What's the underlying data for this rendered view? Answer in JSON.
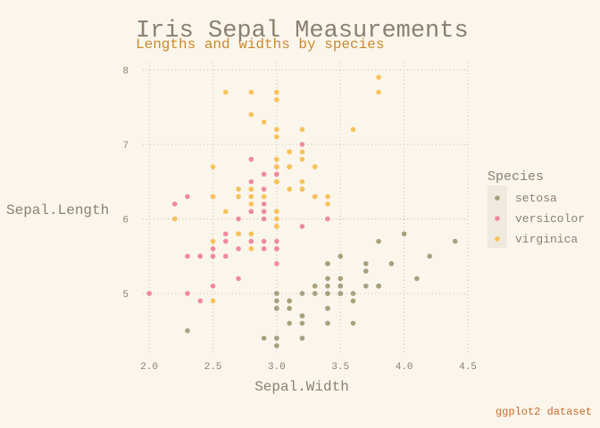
{
  "chart_data": {
    "type": "scatter",
    "title": "Iris Sepal Measurements",
    "subtitle": "Lengths and widths by species",
    "xlabel": "Sepal.Width",
    "ylabel": "Sepal.Length",
    "caption": "ggplot2 dataset",
    "xlim": [
      1.95,
      4.5
    ],
    "ylim": [
      4.2,
      8.1
    ],
    "xticks": [
      "2.0",
      "2.5",
      "3.0",
      "3.5",
      "4.0",
      "4.5"
    ],
    "yticks": [
      "5",
      "6",
      "7",
      "8"
    ],
    "grid": true,
    "legend_title": "Species",
    "legend_position": "right",
    "series": [
      {
        "name": "setosa",
        "color": "#a8a07e",
        "points": [
          [
            3.5,
            5.1
          ],
          [
            3.0,
            4.9
          ],
          [
            3.2,
            4.7
          ],
          [
            3.1,
            4.6
          ],
          [
            3.6,
            5.0
          ],
          [
            3.9,
            5.4
          ],
          [
            3.4,
            4.6
          ],
          [
            3.4,
            5.0
          ],
          [
            2.9,
            4.4
          ],
          [
            3.1,
            4.9
          ],
          [
            3.7,
            5.4
          ],
          [
            3.4,
            4.8
          ],
          [
            3.0,
            4.8
          ],
          [
            3.0,
            4.3
          ],
          [
            4.0,
            5.8
          ],
          [
            4.4,
            5.7
          ],
          [
            3.9,
            5.4
          ],
          [
            3.5,
            5.1
          ],
          [
            3.8,
            5.7
          ],
          [
            3.8,
            5.1
          ],
          [
            3.4,
            5.4
          ],
          [
            3.7,
            5.1
          ],
          [
            3.6,
            4.6
          ],
          [
            3.3,
            5.1
          ],
          [
            3.4,
            4.8
          ],
          [
            3.0,
            5.0
          ],
          [
            3.4,
            5.0
          ],
          [
            3.5,
            5.2
          ],
          [
            3.4,
            5.2
          ],
          [
            3.2,
            4.7
          ],
          [
            3.1,
            4.8
          ],
          [
            3.4,
            5.4
          ],
          [
            4.1,
            5.2
          ],
          [
            4.2,
            5.5
          ],
          [
            3.1,
            4.9
          ],
          [
            3.2,
            5.0
          ],
          [
            3.5,
            5.5
          ],
          [
            3.6,
            4.9
          ],
          [
            3.0,
            4.4
          ],
          [
            3.4,
            5.1
          ],
          [
            3.5,
            5.0
          ],
          [
            2.3,
            4.5
          ],
          [
            3.2,
            4.4
          ],
          [
            3.5,
            5.0
          ],
          [
            3.8,
            5.1
          ],
          [
            3.0,
            4.8
          ],
          [
            3.8,
            5.1
          ],
          [
            3.2,
            4.6
          ],
          [
            3.7,
            5.3
          ],
          [
            3.3,
            5.0
          ]
        ]
      },
      {
        "name": "versicolor",
        "color": "#ef8a9e",
        "points": [
          [
            3.2,
            7.0
          ],
          [
            3.2,
            6.4
          ],
          [
            3.1,
            6.9
          ],
          [
            2.3,
            5.5
          ],
          [
            2.8,
            6.5
          ],
          [
            2.8,
            5.7
          ],
          [
            3.3,
            6.3
          ],
          [
            2.4,
            4.9
          ],
          [
            2.9,
            6.6
          ],
          [
            2.7,
            5.2
          ],
          [
            2.0,
            5.0
          ],
          [
            3.0,
            5.9
          ],
          [
            2.2,
            6.0
          ],
          [
            2.9,
            6.1
          ],
          [
            2.9,
            5.6
          ],
          [
            3.1,
            6.7
          ],
          [
            3.0,
            5.6
          ],
          [
            2.7,
            5.8
          ],
          [
            2.2,
            6.2
          ],
          [
            2.5,
            5.6
          ],
          [
            3.2,
            5.9
          ],
          [
            2.8,
            6.1
          ],
          [
            2.5,
            6.3
          ],
          [
            2.8,
            6.1
          ],
          [
            2.9,
            6.4
          ],
          [
            3.0,
            6.6
          ],
          [
            2.8,
            6.8
          ],
          [
            3.0,
            6.7
          ],
          [
            2.9,
            6.0
          ],
          [
            2.6,
            5.7
          ],
          [
            2.4,
            5.5
          ],
          [
            2.4,
            5.5
          ],
          [
            2.7,
            5.8
          ],
          [
            2.7,
            6.0
          ],
          [
            3.0,
            5.4
          ],
          [
            3.4,
            6.0
          ],
          [
            3.1,
            6.7
          ],
          [
            2.3,
            6.3
          ],
          [
            3.0,
            5.6
          ],
          [
            2.5,
            5.5
          ],
          [
            2.6,
            5.5
          ],
          [
            3.0,
            6.1
          ],
          [
            2.6,
            5.8
          ],
          [
            2.3,
            5.0
          ],
          [
            2.7,
            5.6
          ],
          [
            3.0,
            5.7
          ],
          [
            2.9,
            5.7
          ],
          [
            2.9,
            6.2
          ],
          [
            2.5,
            5.1
          ],
          [
            2.8,
            5.7
          ]
        ]
      },
      {
        "name": "virginica",
        "color": "#f7c35a",
        "points": [
          [
            3.3,
            6.3
          ],
          [
            2.7,
            5.8
          ],
          [
            3.0,
            7.1
          ],
          [
            2.9,
            6.3
          ],
          [
            3.0,
            6.5
          ],
          [
            3.0,
            7.6
          ],
          [
            2.5,
            4.9
          ],
          [
            2.9,
            7.3
          ],
          [
            2.5,
            6.7
          ],
          [
            3.6,
            7.2
          ],
          [
            3.2,
            6.5
          ],
          [
            2.7,
            6.4
          ],
          [
            3.0,
            6.8
          ],
          [
            2.5,
            5.7
          ],
          [
            2.8,
            5.8
          ],
          [
            3.2,
            6.4
          ],
          [
            3.0,
            6.5
          ],
          [
            3.8,
            7.7
          ],
          [
            2.6,
            7.7
          ],
          [
            2.2,
            6.0
          ],
          [
            3.2,
            6.9
          ],
          [
            2.8,
            5.6
          ],
          [
            2.8,
            7.7
          ],
          [
            2.7,
            6.3
          ],
          [
            3.3,
            6.7
          ],
          [
            3.2,
            7.2
          ],
          [
            2.8,
            6.2
          ],
          [
            3.0,
            6.1
          ],
          [
            2.8,
            6.4
          ],
          [
            3.0,
            7.2
          ],
          [
            2.8,
            7.4
          ],
          [
            3.8,
            7.9
          ],
          [
            2.8,
            6.4
          ],
          [
            2.8,
            6.3
          ],
          [
            2.6,
            6.1
          ],
          [
            3.0,
            7.7
          ],
          [
            3.4,
            6.3
          ],
          [
            3.1,
            6.4
          ],
          [
            3.0,
            6.0
          ],
          [
            3.1,
            6.9
          ],
          [
            3.1,
            6.7
          ],
          [
            3.1,
            6.9
          ],
          [
            2.7,
            5.8
          ],
          [
            3.2,
            6.8
          ],
          [
            3.3,
            6.7
          ],
          [
            3.0,
            6.7
          ],
          [
            2.5,
            6.3
          ],
          [
            3.0,
            6.5
          ],
          [
            3.4,
            6.2
          ],
          [
            3.0,
            5.9
          ]
        ]
      }
    ]
  }
}
